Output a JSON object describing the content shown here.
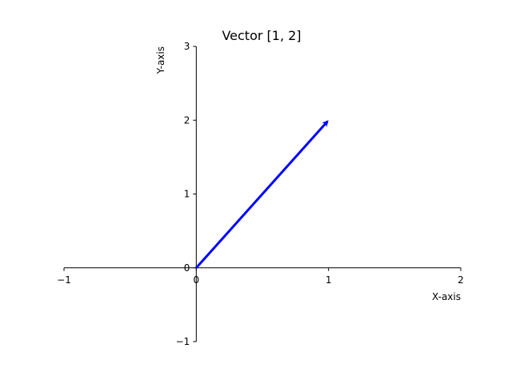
{
  "chart_data": {
    "type": "line",
    "title": "Vector [1, 2]",
    "xlabel": "X-axis",
    "ylabel": "Y-axis",
    "xlim": [
      -1,
      2
    ],
    "ylim": [
      -1,
      3
    ],
    "x_ticks": [
      -1,
      0,
      1,
      2
    ],
    "y_ticks": [
      -1,
      0,
      1,
      2,
      3
    ],
    "x_tick_labels": [
      "−1",
      "0",
      "1",
      "2"
    ],
    "y_tick_labels": [
      "−1",
      "0",
      "1",
      "2",
      "3"
    ],
    "grid": false,
    "vector": {
      "origin": [
        0,
        0
      ],
      "components": [
        1,
        2
      ],
      "color": "#0000ff"
    }
  }
}
